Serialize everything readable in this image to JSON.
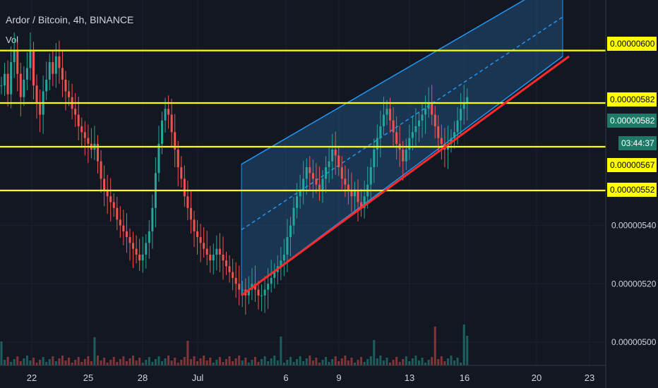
{
  "header": {
    "symbol": "Ardor / Bitcoin",
    "interval": "4h",
    "exchange": "BINANCE",
    "volume_label": "Vol"
  },
  "colors": {
    "background": "#131722",
    "up": "#26a69a",
    "down": "#ef5350",
    "level_line": "#ffff00",
    "channel_edge": "#2196f3",
    "channel_fill": "#1f4e79",
    "trendline": "#ff2b2b",
    "axis_text": "#d1d4dc"
  },
  "chart_data": {
    "type": "candlestick",
    "y_axis": {
      "min": 5e-06,
      "max": 6.2e-06,
      "ticks": [
        "0.00000500",
        "0.00000520",
        "0.00000540"
      ]
    },
    "x_axis": {
      "ticks": [
        "22",
        "25",
        "28",
        "Jul",
        "6",
        "9",
        "13",
        "16",
        "20",
        "23"
      ]
    },
    "price_labels": [
      {
        "text": "0.00000600",
        "style": "yellow"
      },
      {
        "text": "0.00000582",
        "style": "yellow"
      },
      {
        "text": "0.00000582",
        "style": "green"
      },
      {
        "text": "03:44:37",
        "style": "green"
      },
      {
        "text": "0.00000567",
        "style": "yellow"
      },
      {
        "text": "0.00000552",
        "style": "yellow"
      }
    ],
    "horizontal_levels": [
      6e-06,
      5.82e-06,
      5.67e-06,
      5.52e-06
    ],
    "trendline": {
      "from": {
        "date": "Jul 3",
        "price": 5.16e-06
      },
      "to": {
        "date": "Jul 22",
        "price": 5.98e-06
      }
    },
    "channel": {
      "upper_from": {
        "date": "Jul 3",
        "price": 5.61e-06
      },
      "upper_to": {
        "date": "Jul 22",
        "price": 6.25e-06
      },
      "lower_from": {
        "date": "Jul 3",
        "price": 5.16e-06
      },
      "lower_to": {
        "date": "Jul 22",
        "price": 5.98e-06
      }
    },
    "close_price": 5.82e-06
  }
}
